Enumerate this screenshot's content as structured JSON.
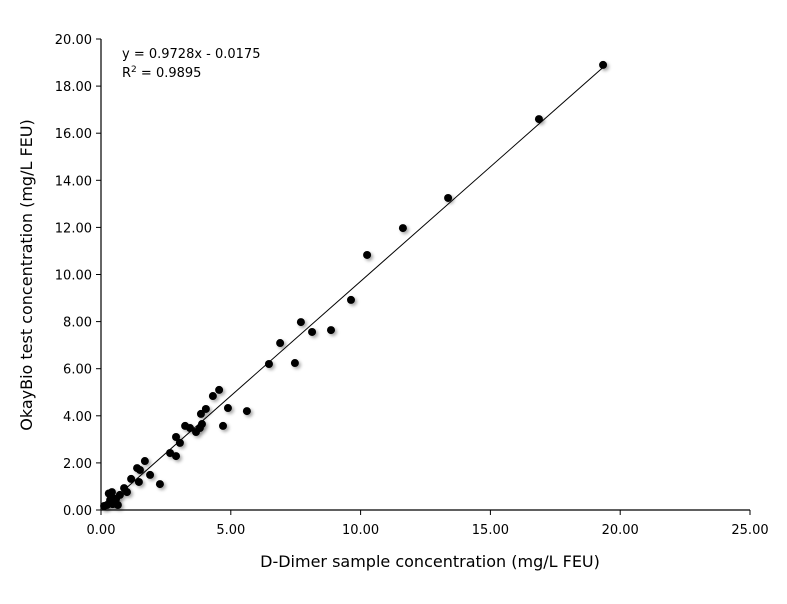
{
  "chart_data": {
    "type": "scatter",
    "title": "",
    "xlabel": "D-Dimer sample concentration (mg/L FEU)",
    "ylabel": "OkayBio test concentration (mg/L FEU)",
    "xlim": [
      0,
      25
    ],
    "ylim": [
      0,
      20
    ],
    "xticks": [
      "0.00",
      "5.00",
      "10.00",
      "15.00",
      "20.00",
      "25.00"
    ],
    "yticks": [
      "0.00",
      "2.00",
      "4.00",
      "6.00",
      "8.00",
      "10.00",
      "12.00",
      "14.00",
      "16.00",
      "18.00",
      "20.00"
    ],
    "grid": false,
    "point_color": "#000000",
    "trendline": {
      "slope": 0.9728,
      "intercept": -0.0175,
      "equation": "y = 0.9728x - 0.0175",
      "r2_label": "R",
      "r2_sup": "2",
      "r2_value": " = 0.9895"
    },
    "points": [
      [
        19.34,
        18.9
      ],
      [
        16.87,
        16.6
      ],
      [
        13.37,
        13.25
      ],
      [
        11.63,
        11.97
      ],
      [
        10.25,
        10.83
      ],
      [
        9.63,
        8.92
      ],
      [
        8.86,
        7.64
      ],
      [
        8.13,
        7.56
      ],
      [
        7.7,
        7.98
      ],
      [
        7.47,
        6.24
      ],
      [
        6.9,
        7.09
      ],
      [
        6.47,
        6.2
      ],
      [
        5.62,
        4.2
      ],
      [
        4.89,
        4.33
      ],
      [
        4.7,
        3.57
      ],
      [
        4.55,
        5.1
      ],
      [
        4.31,
        4.84
      ],
      [
        4.04,
        4.29
      ],
      [
        3.85,
        4.08
      ],
      [
        3.89,
        3.65
      ],
      [
        3.81,
        3.48
      ],
      [
        3.66,
        3.31
      ],
      [
        3.43,
        3.48
      ],
      [
        3.24,
        3.57
      ],
      [
        3.04,
        2.85
      ],
      [
        2.89,
        3.1
      ],
      [
        2.89,
        2.29
      ],
      [
        2.66,
        2.42
      ],
      [
        2.27,
        1.1
      ],
      [
        1.89,
        1.49
      ],
      [
        1.69,
        2.08
      ],
      [
        1.5,
        1.7
      ],
      [
        1.39,
        1.78
      ],
      [
        1.46,
        1.19
      ],
      [
        1.16,
        1.32
      ],
      [
        1.0,
        0.76
      ],
      [
        0.89,
        0.93
      ],
      [
        0.73,
        0.64
      ],
      [
        0.58,
        0.47
      ],
      [
        0.65,
        0.21
      ],
      [
        0.42,
        0.76
      ],
      [
        0.39,
        0.59
      ],
      [
        0.35,
        0.42
      ],
      [
        0.23,
        0.21
      ],
      [
        0.12,
        0.17
      ],
      [
        0.5,
        0.34
      ],
      [
        0.3,
        0.7
      ],
      [
        0.45,
        0.25
      ]
    ]
  }
}
